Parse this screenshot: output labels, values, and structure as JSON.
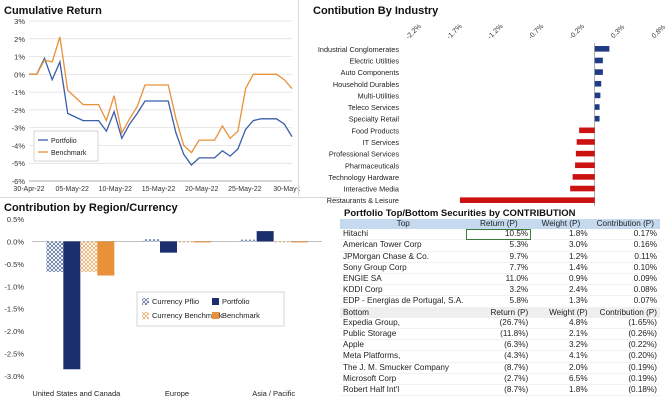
{
  "panels": {
    "cumulative_title": "Cumulative Return",
    "industry_title": "Contibution By Industry",
    "region_title": "Contribution by Region/Currency",
    "table_title": "Portfolio Top/Bottom Securities by CONTRIBUTION"
  },
  "chart_data": [
    {
      "id": "cumulative",
      "type": "line",
      "title": "Cumulative Return",
      "x_tick_labels": [
        "30-Apr-22",
        "05-May-22",
        "10-May-22",
        "15-May-22",
        "20-May-22",
        "25-May-22",
        "30-May-2"
      ],
      "y_tick_labels": [
        "3%",
        "2%",
        "1%",
        "0%",
        "-1%",
        "-2%",
        "-3%",
        "-4%",
        "-5%",
        "-6%"
      ],
      "ylim": [
        -6,
        3
      ],
      "grid": true,
      "legend_position": "inside-bottom-left",
      "series": [
        {
          "name": "Portfolio",
          "color": "#3a5ea8",
          "values": [
            0,
            0,
            0.9,
            -0.3,
            0.7,
            -2.2,
            -2.4,
            -2.6,
            -2.6,
            -2.6,
            -3.2,
            -2.1,
            -3.6,
            -2.8,
            -2.2,
            -1.5,
            -1.5,
            -1.5,
            -1.5,
            -3.3,
            -4.5,
            -5.1,
            -4.7,
            -4.7,
            -4.7,
            -4.3,
            -4.6,
            -4.2,
            -3.1,
            -2.6,
            -2.5,
            -2.5,
            -2.5,
            -2.8,
            -3.5
          ]
        },
        {
          "name": "Benchmark",
          "color": "#e8913a",
          "values": [
            0,
            0,
            0.8,
            0.7,
            2.1,
            -0.9,
            -1.3,
            -1.7,
            -1.7,
            -1.7,
            -2.6,
            -1.2,
            -3.3,
            -2.5,
            -1.8,
            -0.6,
            -0.6,
            -0.6,
            -0.6,
            -2.5,
            -4.0,
            -4.4,
            -3.7,
            -3.7,
            -3.7,
            -2.9,
            -3.6,
            -3.2,
            -0.8,
            0,
            0,
            0,
            0,
            -0.3,
            -0.8
          ]
        }
      ]
    },
    {
      "id": "industry",
      "type": "bar",
      "orientation": "horizontal",
      "title": "Contibution By Industry",
      "x_tick_labels": [
        "-2.2%",
        "-1.7%",
        "-1.2%",
        "-0.7%",
        "-0.2%",
        "0.3%",
        "0.8%"
      ],
      "xlim": [
        -2.2,
        0.8
      ],
      "categories": [
        "Industrial Conglomerates",
        "Electric Utilities",
        "Auto Components",
        "Household Durables",
        "Multi-Utilities",
        "Teleco Services",
        "Specialty Retail",
        "Food Products",
        "IT Services",
        "Professional Services",
        "Pharmaceuticals",
        "Technology Hardware",
        "Interactive Media",
        "Restaurants & Leisure"
      ],
      "values": [
        0.18,
        0.1,
        0.1,
        0.08,
        0.07,
        0.06,
        0.06,
        -0.19,
        -0.22,
        -0.23,
        -0.24,
        -0.27,
        -0.3,
        -1.65
      ],
      "positive_color": "#1f3b84",
      "negative_color": "#cc1111"
    },
    {
      "id": "region",
      "type": "bar",
      "title": "Contribution by Region/Currency",
      "categories": [
        "United States and Canada",
        "Europe",
        "Asia / Pacific"
      ],
      "y_tick_labels": [
        "0.5%",
        "0.0%",
        "-0.5%",
        "-1.0%",
        "-1.5%",
        "-2.0%",
        "-2.5%",
        "-3.0%"
      ],
      "ylim": [
        -3.0,
        0.5
      ],
      "legend_position": "inside-center",
      "series": [
        {
          "name": "Currency Pflio",
          "values": [
            -0.68,
            0.05,
            0.04
          ],
          "color": "#2a4a86",
          "pattern": true
        },
        {
          "name": "Portfolio",
          "values": [
            -2.85,
            -0.25,
            0.23
          ],
          "color": "#1b2e6e",
          "pattern": false
        },
        {
          "name": "Currency Benchmark",
          "values": [
            -0.68,
            0.0,
            0.0
          ],
          "color": "#e8913a",
          "pattern": true
        },
        {
          "name": "Benchmark",
          "values": [
            -0.76,
            0.0,
            0.0
          ],
          "color": "#e8913a",
          "pattern": false
        }
      ]
    }
  ],
  "table": {
    "top_header": [
      "Top",
      "Return (P)",
      "Weight (P)",
      "Contribution (P)"
    ],
    "top_rows": [
      [
        "Hitachi",
        "10.5%",
        "1.8%",
        "0.17%"
      ],
      [
        "American Tower Corp",
        "5.3%",
        "3.0%",
        "0.16%"
      ],
      [
        "JPMorgan Chase & Co.",
        "9.7%",
        "1.2%",
        "0.11%"
      ],
      [
        "Sony Group Corp",
        "7.7%",
        "1.4%",
        "0.10%"
      ],
      [
        "ENGIE SA",
        "11.0%",
        "0.9%",
        "0.09%"
      ],
      [
        "KDDI Corp",
        "3.2%",
        "2.4%",
        "0.08%"
      ],
      [
        "EDP - Energias de Portugal, S.A.",
        "5.8%",
        "1.3%",
        "0.07%"
      ]
    ],
    "bottom_header": [
      "Bottom",
      "Return (P)",
      "Weight (P)",
      "Contribution (P)"
    ],
    "bottom_rows": [
      [
        "Expedia Group,",
        "(26.7%)",
        "4.8%",
        "(1.65%)"
      ],
      [
        "Public Storage",
        "(11.8%)",
        "2.1%",
        "(0.26%)"
      ],
      [
        "Apple",
        "(6.3%)",
        "3.2%",
        "(0.22%)"
      ],
      [
        "Meta Platforms,",
        "(4.3%)",
        "4.1%",
        "(0.20%)"
      ],
      [
        "The J. M. Smucker Company",
        "(8.7%)",
        "2.0%",
        "(0.19%)"
      ],
      [
        "Microsoft Corp",
        "(2.7%)",
        "6.5%",
        "(0.19%)"
      ],
      [
        "Robert Half Int'l",
        "(8.7%)",
        "1.8%",
        "(0.18%)"
      ]
    ]
  }
}
